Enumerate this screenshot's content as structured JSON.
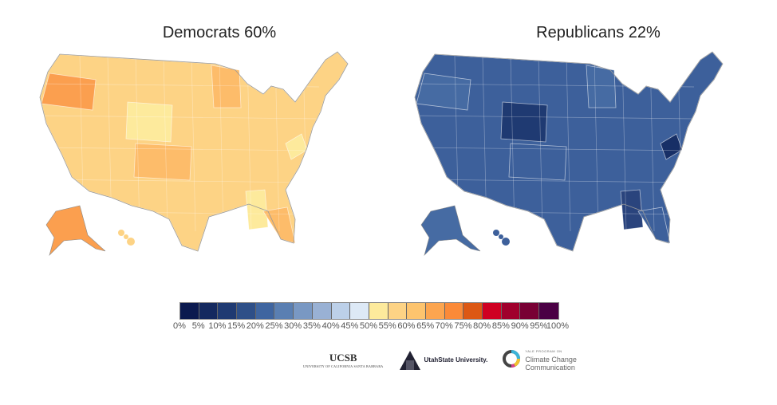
{
  "maps": [
    {
      "title": "Democrats 60%",
      "base_color": "#fdd385",
      "highlights": {
        "oregon": "#fb9f4f",
        "wyoming": "#fdea9c",
        "colorado": "#fdbc6a",
        "minnesota": "#fdbc6a",
        "alabama": "#fdea9c",
        "west_virginia": "#fdea9c",
        "florida": "#fdbc6a"
      }
    },
    {
      "title": "Republicans 22%",
      "base_color": "#3d609b",
      "highlights": {
        "oregon": "#466ba3",
        "wyoming": "#1f3a72",
        "colorado": "#3d609b",
        "minnesota": "#466ba3",
        "alabama": "#2a447d",
        "west_virginia": "#172f66",
        "florida": "#3d609b"
      }
    }
  ],
  "legend": {
    "colors": [
      "#0b1a4f",
      "#14295f",
      "#1f3a72",
      "#2e4f88",
      "#3f65a0",
      "#5a7fb2",
      "#7998c3",
      "#99b1d4",
      "#bcd0e9",
      "#dde9f6",
      "#fdea9c",
      "#fdd385",
      "#fdc46e",
      "#fca54f",
      "#fb8a38",
      "#dc5814",
      "#cf0022",
      "#a0002c",
      "#780034",
      "#4a0044"
    ],
    "labels": [
      "0%",
      "5%",
      "10%",
      "15%",
      "20%",
      "25%",
      "30%",
      "35%",
      "40%",
      "45%",
      "50%",
      "55%",
      "60%",
      "65%",
      "70%",
      "75%",
      "80%",
      "85%",
      "90%",
      "95%",
      "100%"
    ]
  },
  "logos": {
    "ucsb": "UCSB",
    "ucsb_sub": "UNIVERSITY OF CALIFORNIA SANTA BARBARA",
    "usu": "UtahState University.",
    "yale_top": "YALE PROGRAM ON",
    "yale_1": "Climate Change",
    "yale_2": "Communication"
  }
}
